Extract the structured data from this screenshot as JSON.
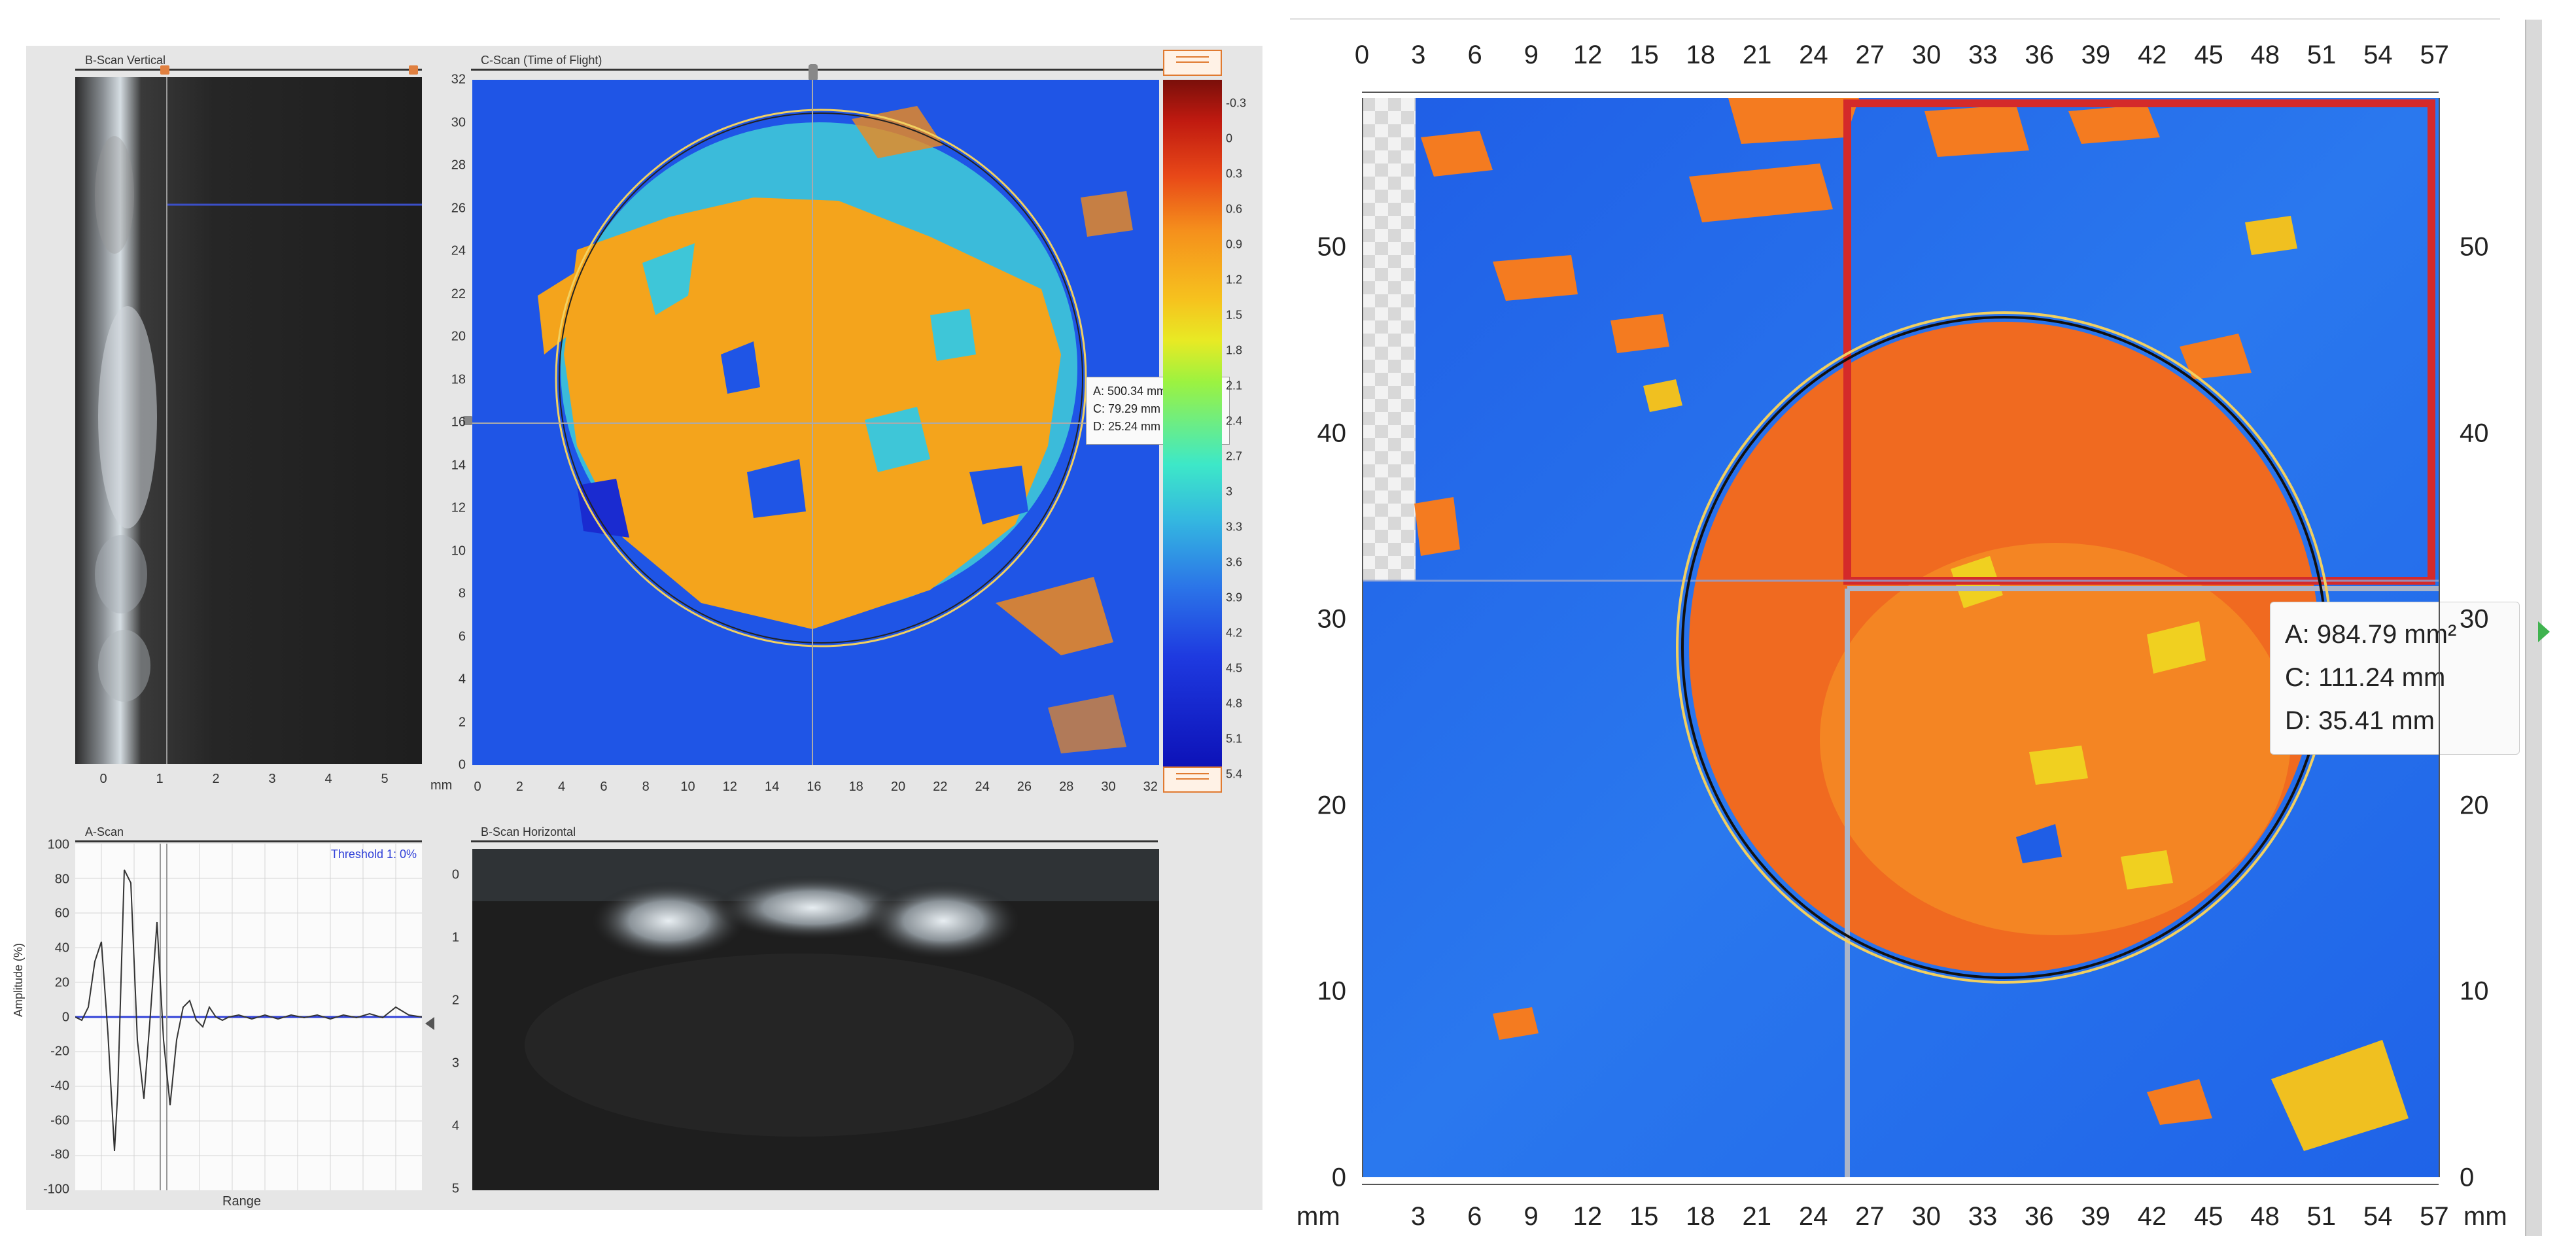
{
  "left_view": {
    "bscan_vertical": {
      "title": "B-Scan Vertical",
      "x_ticks": [
        "0",
        "1",
        "2",
        "3",
        "4",
        "5"
      ]
    },
    "cscan": {
      "title": "C-Scan (Time of Flight)",
      "y_ticks": [
        "32",
        "30",
        "28",
        "26",
        "24",
        "22",
        "20",
        "18",
        "16",
        "14",
        "12",
        "10",
        "8",
        "6",
        "4",
        "2",
        "0"
      ],
      "x_unit": "mm",
      "x_ticks": [
        "0",
        "2",
        "4",
        "6",
        "8",
        "10",
        "12",
        "14",
        "16",
        "18",
        "20",
        "22",
        "24",
        "26",
        "28",
        "30",
        "32"
      ],
      "colorbar_ticks": [
        "-0.3",
        "0",
        "0.3",
        "0.6",
        "0.9",
        "1.2",
        "1.5",
        "1.8",
        "2.1",
        "2.4",
        "2.7",
        "3",
        "3.3",
        "3.6",
        "3.9",
        "4.2",
        "4.5",
        "4.8",
        "5.1",
        "5.4"
      ],
      "readout": {
        "area": "A: 500.34 mm²",
        "circumference": "C: 79.29 mm",
        "diameter": "D: 25.24 mm"
      }
    },
    "ascan": {
      "title": "A-Scan",
      "threshold": "Threshold 1: 0%",
      "y_label": "Amplitude (%)",
      "x_label": "Range",
      "y_ticks": [
        "100",
        "80",
        "60",
        "40",
        "20",
        "0",
        "-20",
        "-40",
        "-60",
        "-80",
        "-100"
      ]
    },
    "bscan_horizontal": {
      "title": "B-Scan Horizontal",
      "y_ticks": [
        "0",
        "1",
        "2",
        "3",
        "4",
        "5"
      ]
    }
  },
  "right_view": {
    "unit_left": "mm",
    "unit_right": "mm",
    "top_ticks": [
      "0",
      "3",
      "6",
      "9",
      "12",
      "15",
      "18",
      "21",
      "24",
      "27",
      "30",
      "33",
      "36",
      "39",
      "42",
      "45",
      "48",
      "51",
      "54",
      "57"
    ],
    "bottom_ticks": [
      "3",
      "6",
      "9",
      "12",
      "15",
      "18",
      "21",
      "24",
      "27",
      "30",
      "33",
      "36",
      "39",
      "42",
      "45",
      "48",
      "51",
      "54",
      "57"
    ],
    "y_ticks": [
      "50",
      "40",
      "30",
      "20",
      "10",
      "0"
    ],
    "right_y_ticks": [
      "50",
      "40",
      "30",
      "20",
      "10",
      "0"
    ],
    "readout": {
      "area": "A: 984.79 mm²",
      "circumference": "C: 111.24 mm",
      "diameter": "D: 35.41 mm"
    }
  },
  "colors": {
    "background_blue": "#1f5fe0",
    "damage_orange": "#f47b20",
    "damage_yellow": "#f0b820",
    "cyan": "#3ec6d8",
    "selection_red": "#d42a2a"
  }
}
